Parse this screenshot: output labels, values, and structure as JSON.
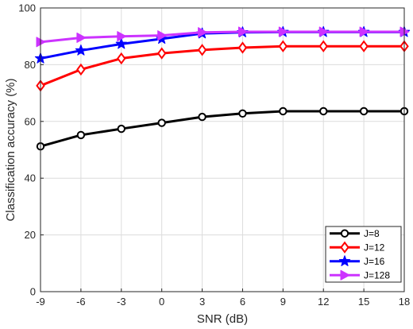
{
  "chart_data": {
    "type": "line",
    "xlabel": "SNR (dB)",
    "ylabel": "Classification accuracy (%)",
    "x": [
      -9,
      -6,
      -3,
      0,
      3,
      6,
      9,
      12,
      15,
      18
    ],
    "xlim": [
      -9,
      18
    ],
    "ylim": [
      0,
      100
    ],
    "xticks": [
      "-9",
      "-6",
      "-3",
      "0",
      "3",
      "6",
      "9",
      "12",
      "15",
      "18"
    ],
    "yticks": [
      "0",
      "20",
      "40",
      "60",
      "80",
      "100"
    ],
    "grid": true,
    "legend_position": "bottom-right",
    "series": [
      {
        "name": "J=8",
        "color": "#000000",
        "marker": "circle",
        "values": [
          51.2,
          55.2,
          57.4,
          59.5,
          61.6,
          62.8,
          63.6,
          63.6,
          63.6,
          63.6
        ]
      },
      {
        "name": "J=12",
        "color": "#ff0000",
        "marker": "diamond",
        "values": [
          72.6,
          78.3,
          82.2,
          84.0,
          85.2,
          86.0,
          86.5,
          86.5,
          86.5,
          86.5
        ]
      },
      {
        "name": "J=16",
        "color": "#0000ff",
        "marker": "star",
        "values": [
          82.2,
          85.0,
          87.3,
          89.1,
          91.0,
          91.4,
          91.5,
          91.5,
          91.5,
          91.5
        ]
      },
      {
        "name": "J=128",
        "color": "#cc33ff",
        "marker": "triangle",
        "values": [
          88.0,
          89.5,
          90.0,
          90.3,
          91.4,
          91.6,
          91.6,
          91.6,
          91.6,
          91.6
        ]
      }
    ]
  }
}
